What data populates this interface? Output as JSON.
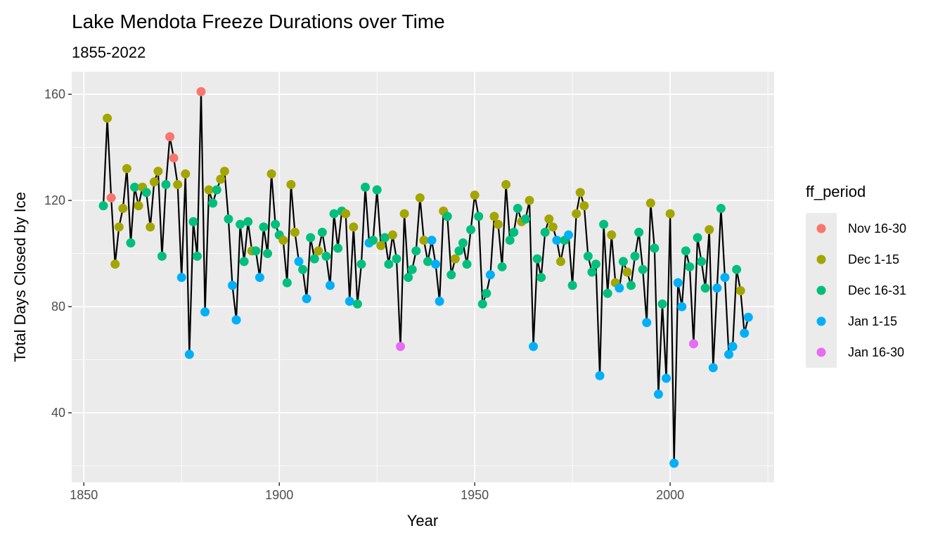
{
  "chart_data": {
    "type": "scatter",
    "title": "Lake Mendota Freeze Durations over Time",
    "subtitle": "1855-2022",
    "xlabel": "Year",
    "ylabel": "Total Days Closed by Ice",
    "xlim": [
      1846.9,
      2026.6
    ],
    "ylim": [
      13.8,
      168.5
    ],
    "x_ticks": [
      1850,
      1900,
      1950,
      2000
    ],
    "y_ticks": [
      40,
      80,
      120,
      160
    ],
    "grid": true,
    "line_connects_points": true,
    "legend": {
      "title": "ff_period",
      "placement": "right",
      "entries": [
        {
          "label": "Nov 16-30",
          "color": "#F8766D"
        },
        {
          "label": "Dec 1-15",
          "color": "#A3A500"
        },
        {
          "label": "Dec 16-31",
          "color": "#00BF7D"
        },
        {
          "label": "Jan 1-15",
          "color": "#00B0F6"
        },
        {
          "label": "Jan 16-30",
          "color": "#E76BF3"
        }
      ]
    },
    "x_start": 1855,
    "values": [
      118,
      151,
      121,
      96,
      110,
      117,
      132,
      104,
      125,
      118,
      125,
      123,
      110,
      127,
      131,
      99,
      126,
      144,
      136,
      126,
      91,
      130,
      62,
      112,
      99,
      161,
      78,
      124,
      119,
      124,
      128,
      131,
      113,
      88,
      75,
      111,
      97,
      112,
      101,
      101,
      91,
      110,
      100,
      130,
      111,
      107,
      105,
      89,
      126,
      108,
      97,
      94,
      83,
      106,
      98,
      101,
      108,
      99,
      88,
      115,
      102,
      116,
      115,
      82,
      110,
      81,
      96,
      125,
      104,
      105,
      124,
      103,
      106,
      96,
      107,
      98,
      65,
      115,
      91,
      94,
      101,
      121,
      105,
      97,
      105,
      96,
      82,
      116,
      114,
      92,
      98,
      101,
      104,
      96,
      109,
      122,
      114,
      81,
      85,
      92,
      114,
      111,
      95,
      126,
      105,
      108,
      117,
      112,
      113,
      120,
      65,
      98,
      91,
      108,
      113,
      110,
      105,
      97,
      105,
      107,
      88,
      115,
      123,
      118,
      99,
      93,
      96,
      54,
      111,
      85,
      107,
      89,
      87,
      97,
      93,
      88,
      99,
      108,
      94,
      74,
      119,
      102,
      47,
      81,
      53,
      115,
      21,
      89,
      80,
      101,
      95,
      66,
      106,
      97,
      87,
      109,
      57,
      87,
      117,
      91,
      62,
      65,
      94,
      86,
      70,
      76
    ],
    "period_index": [
      2,
      1,
      0,
      1,
      1,
      1,
      1,
      2,
      2,
      1,
      1,
      2,
      1,
      1,
      1,
      2,
      2,
      0,
      0,
      1,
      3,
      1,
      3,
      2,
      2,
      0,
      3,
      1,
      2,
      2,
      1,
      1,
      2,
      3,
      3,
      2,
      2,
      2,
      1,
      2,
      3,
      2,
      2,
      1,
      2,
      2,
      1,
      2,
      1,
      1,
      3,
      2,
      3,
      2,
      2,
      1,
      2,
      2,
      3,
      2,
      2,
      2,
      1,
      3,
      1,
      2,
      2,
      2,
      3,
      2,
      2,
      1,
      2,
      2,
      1,
      2,
      4,
      1,
      2,
      2,
      2,
      1,
      1,
      2,
      3,
      3,
      3,
      1,
      2,
      2,
      1,
      2,
      2,
      2,
      2,
      1,
      2,
      2,
      2,
      3,
      1,
      1,
      2,
      1,
      2,
      2,
      2,
      1,
      2,
      1,
      3,
      2,
      2,
      2,
      1,
      1,
      3,
      1,
      2,
      3,
      2,
      1,
      1,
      1,
      2,
      2,
      2,
      3,
      2,
      2,
      1,
      1,
      3,
      2,
      1,
      2,
      2,
      2,
      2,
      3,
      1,
      2,
      3,
      2,
      3,
      1,
      3,
      3,
      3,
      2,
      2,
      4,
      2,
      2,
      2,
      1,
      3,
      3,
      2,
      3,
      3,
      3,
      2,
      1,
      3,
      3
    ]
  }
}
